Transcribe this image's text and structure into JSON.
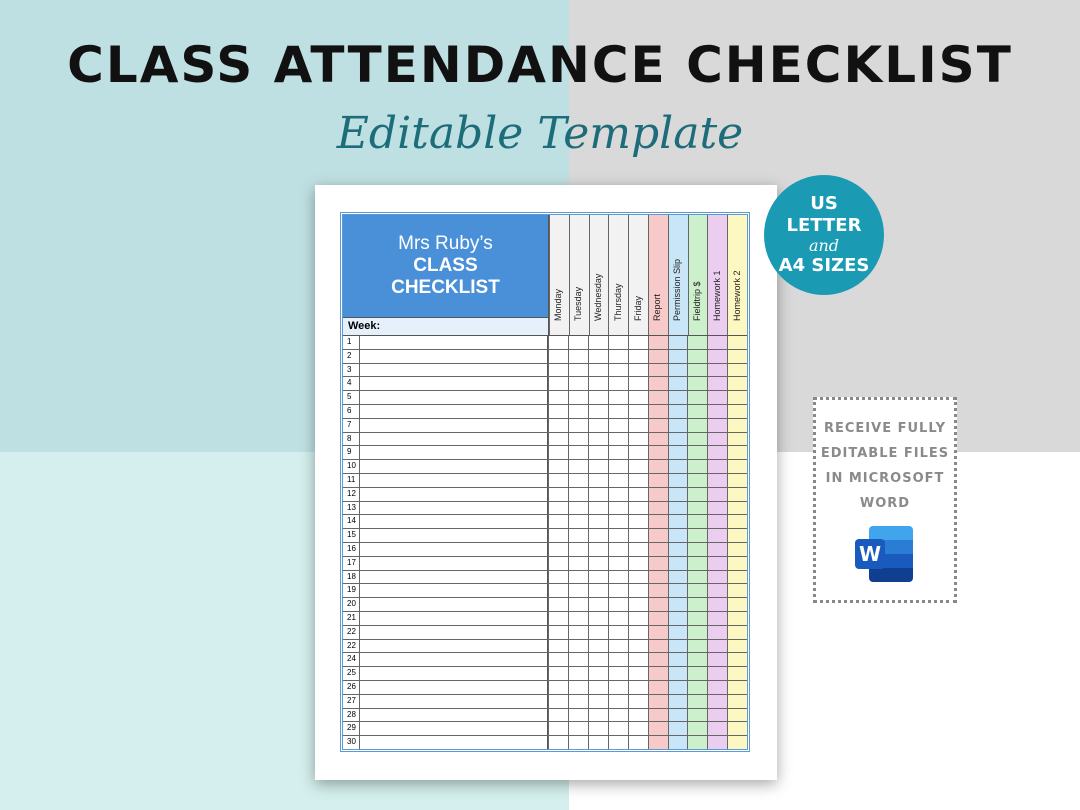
{
  "header": {
    "title": "CLASS ATTENDANCE CHECKLIST",
    "subtitle": "Editable Template"
  },
  "checklist": {
    "teacher_name": "Mrs Ruby’s",
    "title_line1": "CLASS",
    "title_line2": "CHECKLIST",
    "week_label": "Week:",
    "columns": [
      {
        "label": "Monday",
        "color": "#ffffff"
      },
      {
        "label": "Tuesday",
        "color": "#ffffff"
      },
      {
        "label": "Wednesday",
        "color": "#ffffff"
      },
      {
        "label": "Thursday",
        "color": "#ffffff"
      },
      {
        "label": "Friday",
        "color": "#ffffff"
      },
      {
        "label": "Report",
        "color": "#f8c9c9"
      },
      {
        "label": "Permission Slip",
        "color": "#c9e6f8"
      },
      {
        "label": "Fieldtrip $",
        "color": "#cdf0cc"
      },
      {
        "label": "Homework 1",
        "color": "#ebcdef"
      },
      {
        "label": "Homework 2",
        "color": "#fdf7c2"
      }
    ],
    "row_numbers": [
      "1",
      "2",
      "3",
      "4",
      "5",
      "6",
      "7",
      "8",
      "9",
      "10",
      "11",
      "12",
      "13",
      "14",
      "15",
      "16",
      "17",
      "18",
      "19",
      "20",
      "21",
      "22",
      "22",
      "24",
      "25",
      "26",
      "27",
      "28",
      "29",
      "30"
    ]
  },
  "badge": {
    "line1": "US",
    "line2": "LETTER",
    "line3": "and",
    "line4": "A4 SIZES"
  },
  "promo": {
    "line1": "RECEIVE FULLY",
    "line2": "EDITABLE FILES",
    "line3": "IN MICROSOFT",
    "line4": "WORD",
    "icon_letter": "W"
  }
}
